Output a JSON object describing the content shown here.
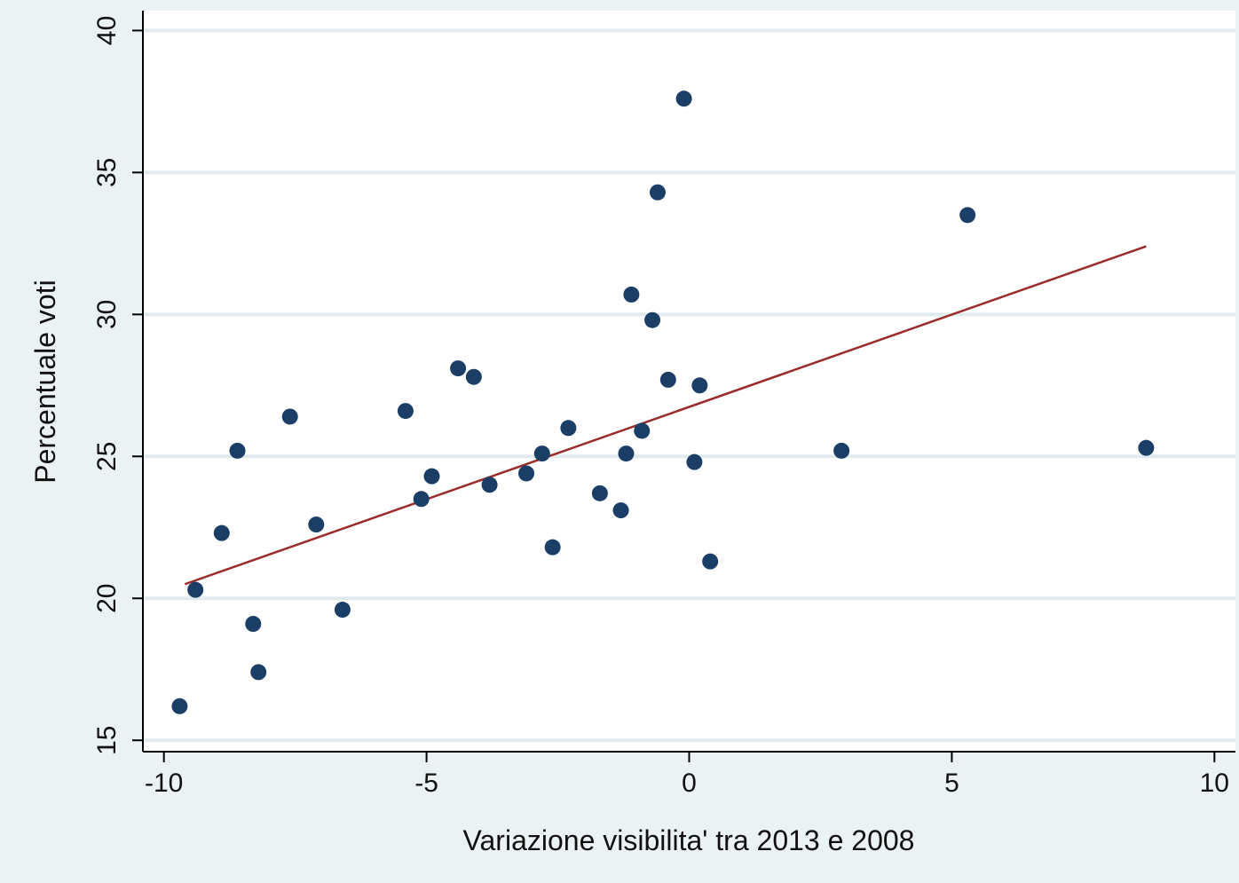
{
  "chart_data": {
    "type": "scatter",
    "title": "",
    "xlabel": "Variazione visibilita' tra 2013 e 2008",
    "ylabel": "Percentuale voti",
    "xlim": [
      -10.4,
      10.4
    ],
    "ylim": [
      14.6,
      40.7
    ],
    "xticks": [
      -10,
      -5,
      0,
      5,
      10
    ],
    "yticks": [
      15,
      20,
      25,
      30,
      35,
      40
    ],
    "xtick_labels": [
      "-10",
      "-5",
      "0",
      "5",
      "10"
    ],
    "ytick_labels": [
      "15",
      "20",
      "25",
      "30",
      "35",
      "40"
    ],
    "grid": "horizontal",
    "legend": "none",
    "colors": {
      "background": "#eaf2f3",
      "plot_area": "#ffffff",
      "gridline": "#e1ebee",
      "points": "#1a3e66",
      "fit_line": "#9b2b2b"
    },
    "series": [
      {
        "type": "scatter",
        "points": [
          [
            -9.7,
            16.2
          ],
          [
            -9.4,
            20.3
          ],
          [
            -8.9,
            22.3
          ],
          [
            -8.6,
            25.2
          ],
          [
            -8.3,
            19.1
          ],
          [
            -8.2,
            17.4
          ],
          [
            -7.6,
            26.4
          ],
          [
            -7.1,
            22.6
          ],
          [
            -6.6,
            19.6
          ],
          [
            -5.4,
            26.6
          ],
          [
            -5.1,
            23.5
          ],
          [
            -4.9,
            24.3
          ],
          [
            -4.4,
            28.1
          ],
          [
            -4.1,
            27.8
          ],
          [
            -3.8,
            24.0
          ],
          [
            -3.1,
            24.4
          ],
          [
            -2.8,
            25.1
          ],
          [
            -2.6,
            21.8
          ],
          [
            -2.3,
            26.0
          ],
          [
            -1.7,
            23.7
          ],
          [
            -1.3,
            23.1
          ],
          [
            -1.2,
            25.1
          ],
          [
            -1.1,
            30.7
          ],
          [
            -0.9,
            25.9
          ],
          [
            -0.7,
            29.8
          ],
          [
            -0.6,
            34.3
          ],
          [
            -0.4,
            27.7
          ],
          [
            -0.1,
            37.6
          ],
          [
            0.1,
            24.8
          ],
          [
            0.2,
            27.5
          ],
          [
            0.4,
            21.3
          ],
          [
            2.9,
            25.2
          ],
          [
            5.3,
            33.5
          ],
          [
            8.7,
            25.3
          ]
        ]
      },
      {
        "type": "line",
        "points": [
          [
            -9.6,
            20.5
          ],
          [
            8.7,
            32.4
          ]
        ]
      }
    ]
  }
}
